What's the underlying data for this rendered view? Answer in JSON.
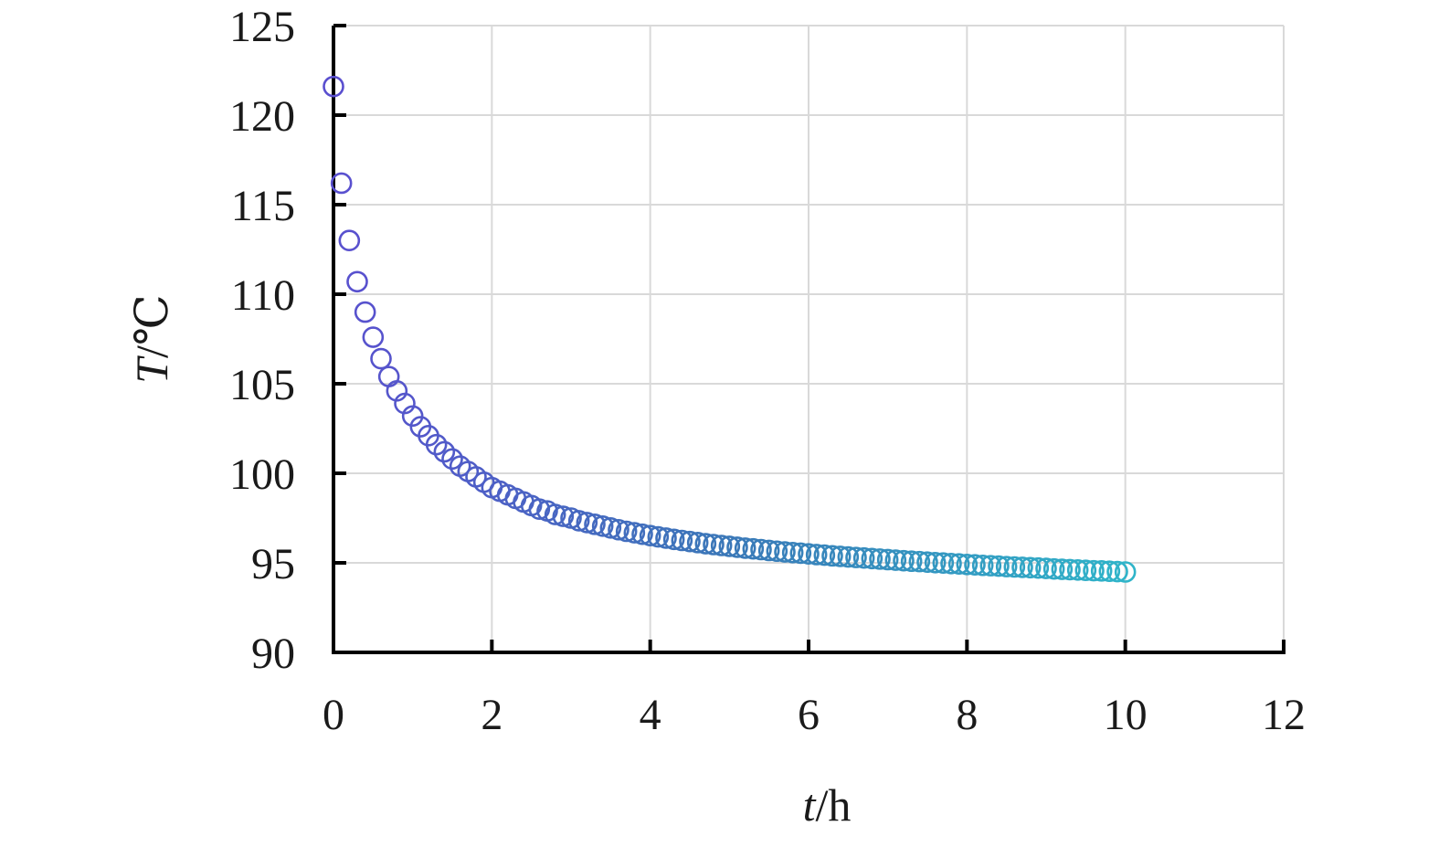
{
  "chart_data": {
    "type": "scatter",
    "xlabel": {
      "italic": "t",
      "unit": "/h"
    },
    "ylabel": {
      "italic": "T",
      "unit": "/℃"
    },
    "xlim": [
      0,
      12
    ],
    "ylim": [
      90,
      125
    ],
    "x_ticks": [
      "0",
      "2",
      "4",
      "6",
      "8",
      "10",
      "12"
    ],
    "y_ticks": [
      "90",
      "95",
      "100",
      "105",
      "110",
      "115",
      "120",
      "125"
    ],
    "grid": true,
    "marker": "open-circle",
    "color_gradient": [
      "#5a4fcf",
      "#3a78b8",
      "#2fb4c9"
    ],
    "points": [
      [
        0.0,
        121.6
      ],
      [
        0.1,
        116.2
      ],
      [
        0.2,
        113.0
      ],
      [
        0.3,
        110.7
      ],
      [
        0.4,
        109.0
      ],
      [
        0.5,
        107.6
      ],
      [
        0.6,
        106.4
      ],
      [
        0.7,
        105.4
      ],
      [
        0.8,
        104.6
      ],
      [
        0.9,
        103.9
      ],
      [
        1.0,
        103.2
      ],
      [
        1.1,
        102.6
      ],
      [
        1.2,
        102.1
      ],
      [
        1.3,
        101.6
      ],
      [
        1.4,
        101.2
      ],
      [
        1.5,
        100.8
      ],
      [
        1.6,
        100.4
      ],
      [
        1.7,
        100.1
      ],
      [
        1.8,
        99.8
      ],
      [
        1.9,
        99.5
      ],
      [
        2.0,
        99.2
      ],
      [
        2.1,
        99.0
      ],
      [
        2.2,
        98.8
      ],
      [
        2.3,
        98.6
      ],
      [
        2.4,
        98.4
      ],
      [
        2.5,
        98.2
      ],
      [
        2.6,
        98.0
      ],
      [
        2.7,
        97.9
      ],
      [
        2.8,
        97.7
      ],
      [
        2.9,
        97.6
      ],
      [
        3.0,
        97.5
      ],
      [
        3.1,
        97.35
      ],
      [
        3.2,
        97.25
      ],
      [
        3.3,
        97.15
      ],
      [
        3.4,
        97.05
      ],
      [
        3.5,
        96.95
      ],
      [
        3.6,
        96.85
      ],
      [
        3.7,
        96.76
      ],
      [
        3.8,
        96.68
      ],
      [
        3.9,
        96.6
      ],
      [
        4.0,
        96.52
      ],
      [
        4.1,
        96.45
      ],
      [
        4.2,
        96.38
      ],
      [
        4.3,
        96.31
      ],
      [
        4.4,
        96.25
      ],
      [
        4.5,
        96.19
      ],
      [
        4.6,
        96.13
      ],
      [
        4.7,
        96.07
      ],
      [
        4.8,
        96.02
      ],
      [
        4.9,
        95.97
      ],
      [
        5.0,
        95.92
      ],
      [
        5.1,
        95.87
      ],
      [
        5.2,
        95.82
      ],
      [
        5.3,
        95.78
      ],
      [
        5.4,
        95.74
      ],
      [
        5.5,
        95.69
      ],
      [
        5.6,
        95.65
      ],
      [
        5.7,
        95.61
      ],
      [
        5.8,
        95.57
      ],
      [
        5.9,
        95.54
      ],
      [
        6.0,
        95.5
      ],
      [
        6.1,
        95.46
      ],
      [
        6.2,
        95.43
      ],
      [
        6.3,
        95.39
      ],
      [
        6.4,
        95.36
      ],
      [
        6.5,
        95.33
      ],
      [
        6.6,
        95.3
      ],
      [
        6.7,
        95.27
      ],
      [
        6.8,
        95.24
      ],
      [
        6.9,
        95.21
      ],
      [
        7.0,
        95.18
      ],
      [
        7.1,
        95.15
      ],
      [
        7.2,
        95.12
      ],
      [
        7.3,
        95.09
      ],
      [
        7.4,
        95.07
      ],
      [
        7.5,
        95.04
      ],
      [
        7.6,
        95.01
      ],
      [
        7.7,
        94.99
      ],
      [
        7.8,
        94.96
      ],
      [
        7.9,
        94.94
      ],
      [
        8.0,
        94.91
      ],
      [
        8.1,
        94.89
      ],
      [
        8.2,
        94.86
      ],
      [
        8.3,
        94.84
      ],
      [
        8.4,
        94.82
      ],
      [
        8.5,
        94.79
      ],
      [
        8.6,
        94.77
      ],
      [
        8.7,
        94.75
      ],
      [
        8.8,
        94.73
      ],
      [
        8.9,
        94.71
      ],
      [
        9.0,
        94.69
      ],
      [
        9.1,
        94.66
      ],
      [
        9.2,
        94.64
      ],
      [
        9.3,
        94.62
      ],
      [
        9.4,
        94.6
      ],
      [
        9.5,
        94.58
      ],
      [
        9.6,
        94.56
      ],
      [
        9.7,
        94.55
      ],
      [
        9.8,
        94.53
      ],
      [
        9.9,
        94.51
      ],
      [
        10.0,
        94.49
      ]
    ]
  }
}
